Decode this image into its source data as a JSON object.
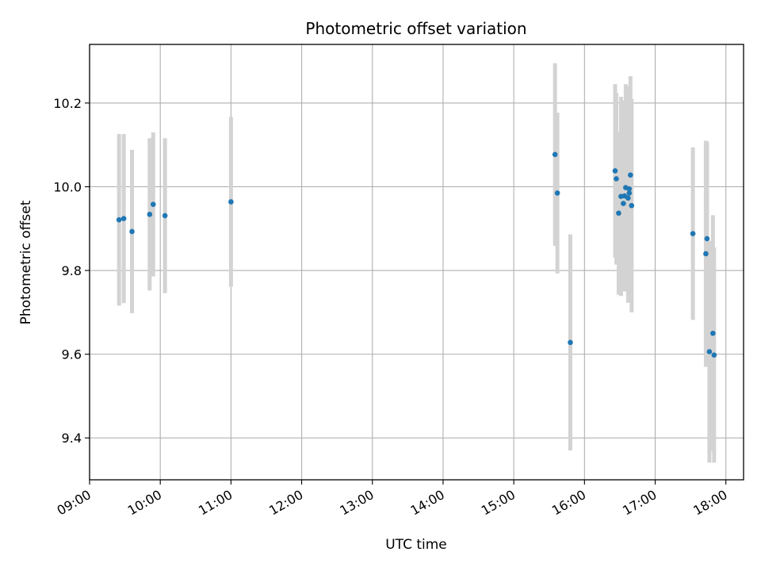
{
  "chart_data": {
    "type": "scatter",
    "title": "Photometric offset variation",
    "xlabel": "UTC time",
    "ylabel": "Photometric offset",
    "x_unit": "hours (UTC)",
    "xlim": [
      "09:00",
      "18:15"
    ],
    "ylim": [
      9.3,
      10.34
    ],
    "x_ticks": [
      "09:00",
      "10:00",
      "11:00",
      "12:00",
      "13:00",
      "14:00",
      "15:00",
      "16:00",
      "17:00",
      "18:00"
    ],
    "y_ticks": [
      9.4,
      9.6,
      9.8,
      10.0,
      10.2
    ],
    "y_tick_labels": [
      "9.4",
      "9.6",
      "9.8",
      "10.0",
      "10.2"
    ],
    "grid": true,
    "marker_color": "#1f77b4",
    "errorbar_color": "#d3d3d3",
    "points": [
      {
        "t": "09:25",
        "y": 9.921,
        "err": 0.205
      },
      {
        "t": "09:29",
        "y": 9.924,
        "err": 0.202
      },
      {
        "t": "09:36",
        "y": 9.893,
        "err": 0.195
      },
      {
        "t": "09:51",
        "y": 9.934,
        "err": 0.182
      },
      {
        "t": "09:54",
        "y": 9.958,
        "err": 0.172
      },
      {
        "t": "10:04",
        "y": 9.931,
        "err": 0.185
      },
      {
        "t": "11:00",
        "y": 9.964,
        "err": 0.203
      },
      {
        "t": "15:35",
        "y": 10.077,
        "err": 0.218
      },
      {
        "t": "15:37",
        "y": 9.985,
        "err": 0.192
      },
      {
        "t": "15:48",
        "y": 9.628,
        "err": 0.258
      },
      {
        "t": "16:26",
        "y": 10.038,
        "err": 0.207
      },
      {
        "t": "16:27",
        "y": 10.019,
        "err": 0.205
      },
      {
        "t": "16:29",
        "y": 9.937,
        "err": 0.195
      },
      {
        "t": "16:31",
        "y": 9.977,
        "err": 0.238
      },
      {
        "t": "16:33",
        "y": 9.96,
        "err": 0.205
      },
      {
        "t": "16:34",
        "y": 9.978,
        "err": 0.228
      },
      {
        "t": "16:35",
        "y": 9.998,
        "err": 0.247
      },
      {
        "t": "16:37",
        "y": 9.973,
        "err": 0.25
      },
      {
        "t": "16:38",
        "y": 9.995,
        "err": 0.245
      },
      {
        "t": "16:38",
        "y": 9.985,
        "err": 0.24
      },
      {
        "t": "16:39",
        "y": 10.028,
        "err": 0.236
      },
      {
        "t": "16:40",
        "y": 9.955,
        "err": 0.255
      },
      {
        "t": "17:32",
        "y": 9.888,
        "err": 0.206
      },
      {
        "t": "17:43",
        "y": 9.84,
        "err": 0.27
      },
      {
        "t": "17:44",
        "y": 9.876,
        "err": 0.232
      },
      {
        "t": "17:46",
        "y": 9.606,
        "err": 0.265
      },
      {
        "t": "17:49",
        "y": 9.65,
        "err": 0.282
      },
      {
        "t": "17:50",
        "y": 9.598,
        "err": 0.257
      }
    ]
  }
}
